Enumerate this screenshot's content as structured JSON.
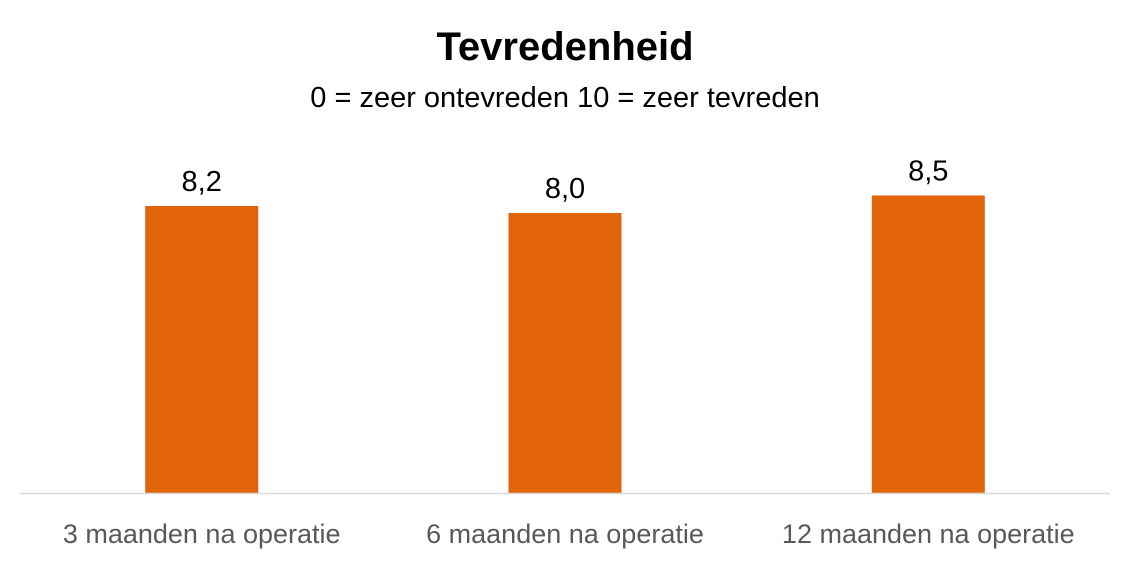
{
  "chart_data": {
    "type": "bar",
    "title": "Tevredenheid",
    "subtitle": "0 = zeer ontevreden  10 = zeer tevreden",
    "categories": [
      "3 maanden na operatie",
      "6 maanden na operatie",
      "12 maanden na operatie"
    ],
    "values": [
      8.2,
      8.0,
      8.5
    ],
    "data_labels": [
      "8,2",
      "8,0",
      "8,5"
    ],
    "ylim": [
      0,
      10
    ],
    "grid": false,
    "legend": "none",
    "bar_color": "#E2640A",
    "axis_color": "#D9D9D9"
  }
}
